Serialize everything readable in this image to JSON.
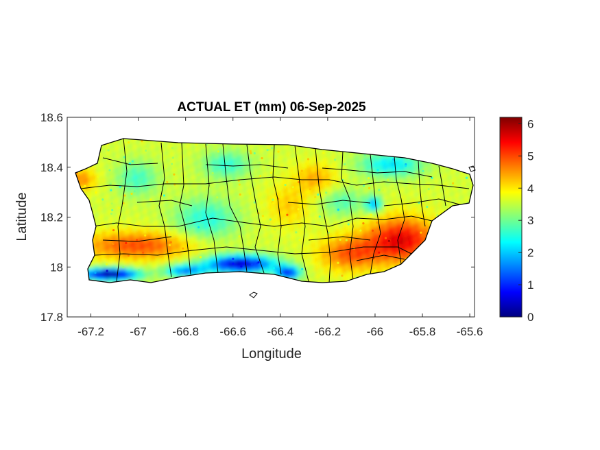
{
  "map": {
    "title": "ACTUAL ET (mm) 06-Sep-2025",
    "xlabel": "Longitude",
    "ylabel": "Latitude",
    "xlim": [
      -67.3,
      -65.58
    ],
    "ylim": [
      17.8,
      18.6
    ],
    "xticks": [
      -67.2,
      -67,
      -66.8,
      -66.6,
      -66.4,
      -66.2,
      -66,
      -65.8,
      -65.6
    ],
    "xtick_labels": [
      "-67.2",
      "-67",
      "-66.8",
      "-66.6",
      "-66.4",
      "-66.2",
      "-66",
      "-65.8",
      "-65.6"
    ],
    "yticks": [
      17.8,
      18,
      18.2,
      18.4,
      18.6
    ],
    "ytick_labels": [
      "17.8",
      "18",
      "18.2",
      "18.4",
      "18.6"
    ],
    "colormap": "jet",
    "colorbar": {
      "clim": [
        0,
        6.2
      ],
      "ticks": [
        0,
        1,
        2,
        3,
        4,
        5,
        6
      ],
      "tick_labels": [
        "0",
        "1",
        "2",
        "3",
        "4",
        "5",
        "6"
      ]
    },
    "colors": {
      "boundary": "#000000",
      "axes": "#262626",
      "background": "#ffffff"
    }
  }
}
